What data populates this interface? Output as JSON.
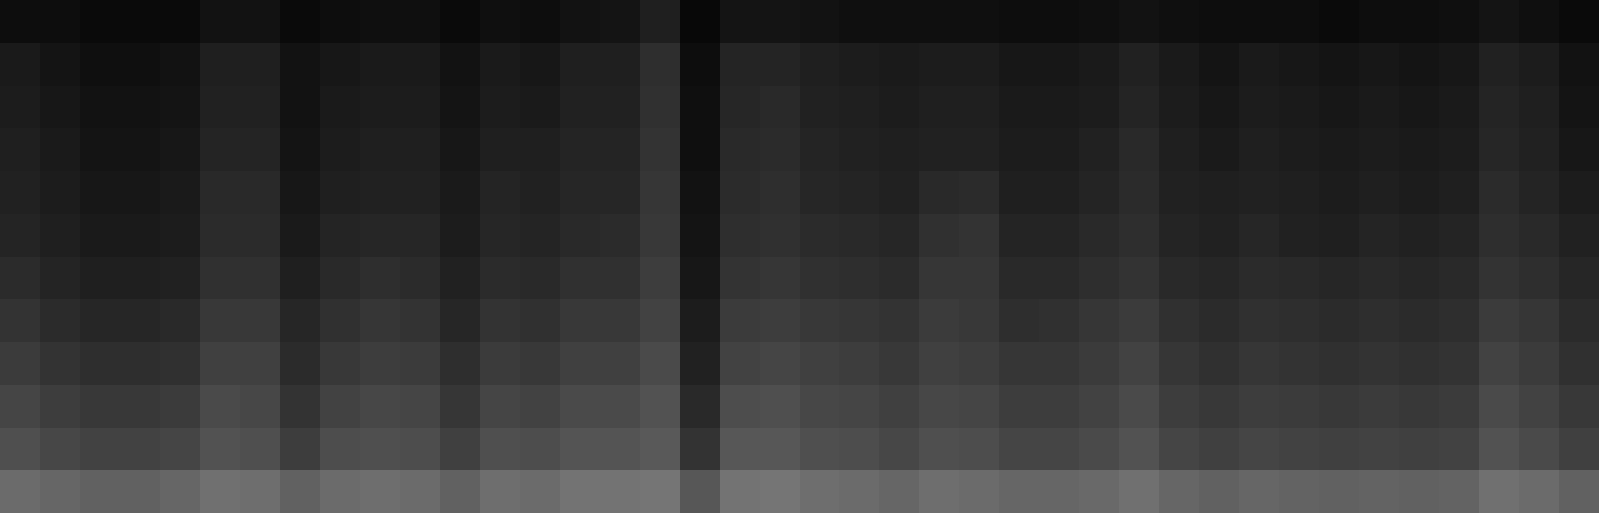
{
  "chart_data": {
    "type": "heatmap",
    "tick_labels": false,
    "color": "#ffffff",
    "zlim": [
      0,
      100
    ],
    "cells": [
      [
        5,
        5,
        4,
        4,
        4,
        7,
        7,
        4,
        5,
        6,
        6,
        4,
        6,
        5,
        7,
        8,
        12,
        3,
        8,
        8,
        7,
        6,
        6,
        6,
        6,
        5,
        5,
        6,
        7,
        6,
        5,
        5,
        5,
        4,
        5,
        5,
        6,
        8,
        6,
        4
      ],
      [
        10,
        8,
        6,
        6,
        7,
        12,
        12,
        7,
        9,
        10,
        10,
        7,
        10,
        9,
        12,
        12,
        18,
        5,
        14,
        14,
        12,
        11,
        10,
        11,
        11,
        9,
        9,
        10,
        13,
        10,
        8,
        10,
        9,
        8,
        9,
        8,
        9,
        13,
        11,
        7
      ],
      [
        11,
        9,
        7,
        7,
        8,
        13,
        13,
        7,
        10,
        11,
        11,
        8,
        11,
        10,
        13,
        13,
        19,
        6,
        15,
        16,
        13,
        12,
        11,
        12,
        12,
        10,
        10,
        11,
        14,
        11,
        9,
        11,
        10,
        9,
        10,
        9,
        10,
        14,
        12,
        8
      ],
      [
        12,
        10,
        8,
        8,
        9,
        14,
        14,
        8,
        11,
        12,
        12,
        9,
        12,
        12,
        14,
        14,
        20,
        6,
        16,
        17,
        14,
        13,
        12,
        13,
        13,
        11,
        11,
        13,
        16,
        12,
        10,
        12,
        11,
        10,
        11,
        10,
        11,
        15,
        13,
        9
      ],
      [
        13,
        11,
        9,
        9,
        10,
        16,
        16,
        9,
        12,
        13,
        13,
        10,
        14,
        13,
        15,
        15,
        21,
        7,
        17,
        18,
        15,
        14,
        13,
        16,
        17,
        12,
        12,
        14,
        17,
        13,
        12,
        13,
        12,
        11,
        12,
        11,
        12,
        17,
        14,
        11
      ],
      [
        14,
        12,
        10,
        10,
        11,
        17,
        17,
        10,
        14,
        15,
        15,
        11,
        15,
        14,
        16,
        17,
        22,
        8,
        18,
        19,
        17,
        16,
        15,
        19,
        20,
        14,
        14,
        16,
        18,
        14,
        13,
        15,
        13,
        12,
        14,
        13,
        14,
        18,
        16,
        13
      ],
      [
        17,
        14,
        12,
        12,
        13,
        19,
        19,
        12,
        16,
        18,
        17,
        13,
        17,
        16,
        19,
        19,
        24,
        9,
        20,
        21,
        19,
        18,
        17,
        21,
        21,
        16,
        16,
        18,
        20,
        16,
        15,
        17,
        16,
        15,
        16,
        15,
        16,
        20,
        18,
        15
      ],
      [
        20,
        17,
        15,
        15,
        16,
        22,
        22,
        15,
        19,
        21,
        20,
        15,
        20,
        19,
        22,
        22,
        26,
        11,
        23,
        24,
        22,
        21,
        20,
        23,
        22,
        18,
        19,
        21,
        23,
        19,
        17,
        19,
        18,
        17,
        18,
        17,
        18,
        23,
        21,
        17
      ],
      [
        23,
        20,
        18,
        18,
        19,
        25,
        25,
        17,
        22,
        24,
        23,
        18,
        23,
        22,
        25,
        25,
        29,
        13,
        26,
        27,
        25,
        24,
        22,
        25,
        24,
        21,
        21,
        23,
        26,
        21,
        19,
        21,
        20,
        19,
        20,
        19,
        20,
        26,
        23,
        19
      ],
      [
        27,
        24,
        22,
        22,
        23,
        29,
        28,
        20,
        26,
        28,
        27,
        21,
        27,
        26,
        29,
        29,
        32,
        16,
        30,
        31,
        28,
        27,
        25,
        28,
        27,
        24,
        24,
        26,
        29,
        24,
        22,
        24,
        23,
        22,
        23,
        22,
        23,
        29,
        26,
        22
      ],
      [
        31,
        28,
        26,
        26,
        27,
        32,
        31,
        24,
        30,
        31,
        30,
        25,
        31,
        30,
        33,
        33,
        35,
        20,
        34,
        34,
        31,
        30,
        28,
        31,
        30,
        27,
        27,
        29,
        32,
        27,
        25,
        27,
        26,
        25,
        26,
        25,
        26,
        32,
        29,
        25
      ],
      [
        42,
        40,
        38,
        38,
        40,
        44,
        43,
        38,
        42,
        43,
        42,
        38,
        43,
        42,
        45,
        45,
        46,
        34,
        45,
        46,
        43,
        42,
        40,
        43,
        42,
        40,
        40,
        41,
        44,
        40,
        38,
        40,
        39,
        38,
        39,
        38,
        39,
        44,
        42,
        38
      ]
    ]
  }
}
